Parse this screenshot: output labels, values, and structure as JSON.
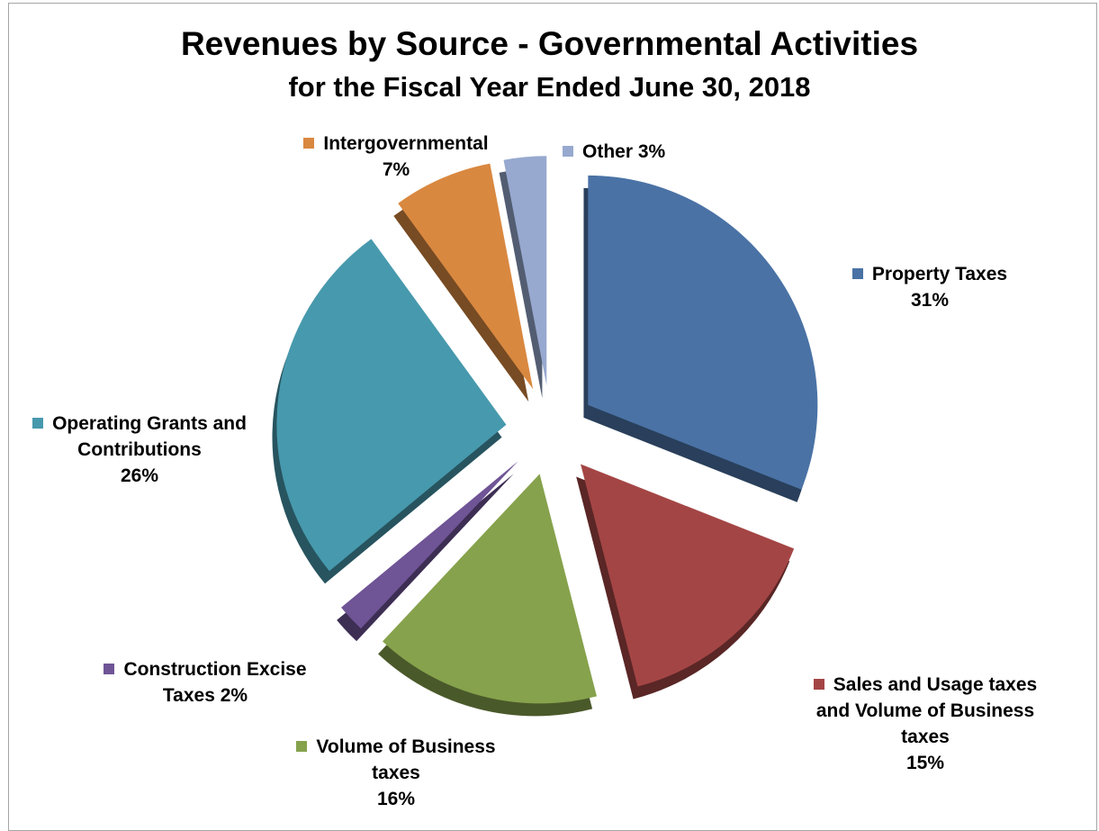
{
  "chart_data": {
    "type": "pie",
    "title": "Revenues by Source - Governmental Activities",
    "subtitle": "for the Fiscal Year Ended June 30, 2018",
    "exploded": true,
    "style": "3d",
    "slices": [
      {
        "label": "Property Taxes",
        "value": 31,
        "value_text": "31%",
        "color": "#4a72a5"
      },
      {
        "label": "Sales and Usage taxes and Volume of Business taxes",
        "value": 15,
        "value_text": "15%",
        "color": "#a44545"
      },
      {
        "label": "Volume of Business taxes",
        "value": 16,
        "value_text": "16%",
        "color": "#86a24c"
      },
      {
        "label": "Construction Excise Taxes",
        "value": 2,
        "value_text": "2%",
        "color": "#6f5496"
      },
      {
        "label": "Operating Grants and Contributions",
        "value": 26,
        "value_text": "26%",
        "color": "#4799ad"
      },
      {
        "label": "Intergovernmental",
        "value": 7,
        "value_text": "7%",
        "color": "#d98840"
      },
      {
        "label": "Other",
        "value": 3,
        "value_text": "3%",
        "color": "#97a9cf"
      }
    ]
  }
}
